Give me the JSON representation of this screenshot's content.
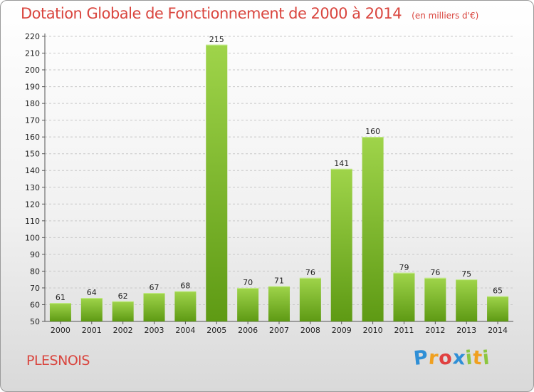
{
  "chart_data": {
    "type": "bar",
    "title": "Dotation Globale de Fonctionnement de 2000 à 2014",
    "subtitle": "(en milliers d'€)",
    "categories": [
      "2000",
      "2001",
      "2002",
      "2003",
      "2004",
      "2005",
      "2006",
      "2007",
      "2008",
      "2009",
      "2010",
      "2011",
      "2012",
      "2013",
      "2014"
    ],
    "values": [
      61,
      64,
      62,
      67,
      68,
      215,
      70,
      71,
      76,
      141,
      160,
      79,
      76,
      75,
      65
    ],
    "ylim": [
      50,
      220
    ],
    "yticks": [
      50,
      60,
      70,
      80,
      90,
      100,
      110,
      120,
      130,
      140,
      150,
      160,
      170,
      180,
      190,
      200,
      210,
      220
    ],
    "xlabel": "",
    "ylabel": "",
    "grid": true,
    "bar_color": "#7dbb2b"
  },
  "place_name": "PLESNOIS",
  "logo": {
    "letters": [
      "P",
      "r",
      "o",
      "x",
      "i",
      "t",
      "i"
    ],
    "colors": [
      "#2f8fd6",
      "#f0a020",
      "#e04040",
      "#2f8fd6",
      "#8cc63f",
      "#f0a020",
      "#8cc63f"
    ]
  }
}
